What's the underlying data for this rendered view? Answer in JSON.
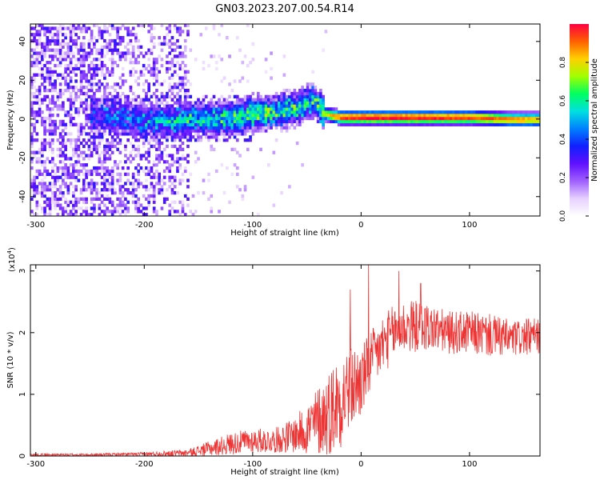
{
  "figure_title": "GN03.2023.207.00.54.R14",
  "chart_data": [
    {
      "type": "heatmap",
      "title": "",
      "xlabel": "Height of straight line (km)",
      "ylabel": "Frequency (Hz)",
      "xlim": [
        -305,
        165
      ],
      "ylim": [
        -50,
        49
      ],
      "xticks": [
        -300,
        -200,
        -100,
        0,
        100
      ],
      "yticks": [
        -40,
        -20,
        0,
        20,
        40
      ],
      "colorbar": {
        "label": "Normalized spectral amplitude",
        "range": [
          0.0,
          1.0
        ],
        "ticks": [
          0.0,
          0.2,
          0.4,
          0.6,
          0.8
        ],
        "colormap": [
          "#ffffff",
          "#e6d0ff",
          "#a060ff",
          "#6010ff",
          "#1020ff",
          "#0080ff",
          "#00e0e0",
          "#00ff60",
          "#a0ff00",
          "#ffd000",
          "#ff6000",
          "#ff0040"
        ]
      },
      "ridge": [
        {
          "x": -240,
          "f": 1,
          "amp": 0.35
        },
        {
          "x": -220,
          "f": 0,
          "amp": 0.35
        },
        {
          "x": -200,
          "f": -2,
          "amp": 0.4
        },
        {
          "x": -180,
          "f": -2,
          "amp": 0.45
        },
        {
          "x": -160,
          "f": -1,
          "amp": 0.5
        },
        {
          "x": -140,
          "f": -1,
          "amp": 0.5
        },
        {
          "x": -120,
          "f": 0,
          "amp": 0.55
        },
        {
          "x": -100,
          "f": 2,
          "amp": 0.6
        },
        {
          "x": -80,
          "f": 3,
          "amp": 0.55
        },
        {
          "x": -60,
          "f": 5,
          "amp": 0.55
        },
        {
          "x": -45,
          "f": 9,
          "amp": 0.5
        },
        {
          "x": -35,
          "f": 2,
          "amp": 0.7
        },
        {
          "x": -20,
          "f": 0,
          "amp": 0.9
        },
        {
          "x": 0,
          "f": 0,
          "amp": 0.95
        },
        {
          "x": 50,
          "f": 0,
          "amp": 0.95
        },
        {
          "x": 100,
          "f": 0,
          "amp": 0.9
        },
        {
          "x": 140,
          "f": -1,
          "amp": 0.85
        },
        {
          "x": 165,
          "f": -1,
          "amp": 0.8
        }
      ]
    },
    {
      "type": "line",
      "title": "",
      "xlabel": "Height of straight line (km)",
      "ylabel": "SNR (10 * v/v)",
      "yscale_label": "(x10",
      "yscale_exp": "4",
      "yscale_close": ")",
      "xlim": [
        -305,
        165
      ],
      "ylim": [
        0,
        3.1
      ],
      "xticks": [
        -300,
        -200,
        -100,
        0,
        100
      ],
      "yticks": [
        0,
        1,
        2,
        3
      ],
      "color": "#ee3333",
      "envelope": {
        "x": [
          -305,
          -250,
          -200,
          -160,
          -140,
          -120,
          -100,
          -80,
          -60,
          -45,
          -30,
          -20,
          -10,
          0,
          10,
          20,
          30,
          40,
          60,
          80,
          100,
          120,
          140,
          165
        ],
        "mean": [
          0.02,
          0.02,
          0.03,
          0.05,
          0.12,
          0.2,
          0.25,
          0.25,
          0.35,
          0.5,
          0.7,
          0.9,
          1.1,
          1.2,
          1.55,
          1.8,
          2.0,
          2.1,
          2.1,
          2.0,
          2.0,
          1.95,
          1.9,
          1.95
        ],
        "amp": [
          0.02,
          0.02,
          0.03,
          0.06,
          0.12,
          0.18,
          0.2,
          0.2,
          0.3,
          0.5,
          0.7,
          0.8,
          0.7,
          0.6,
          0.5,
          0.5,
          0.45,
          0.45,
          0.4,
          0.35,
          0.35,
          0.35,
          0.3,
          0.3
        ]
      },
      "spikes": [
        {
          "x": -10,
          "y": 2.7
        },
        {
          "x": 7,
          "y": 3.1
        },
        {
          "x": 35,
          "y": 3.0
        },
        {
          "x": 55,
          "y": 2.8
        }
      ]
    }
  ]
}
